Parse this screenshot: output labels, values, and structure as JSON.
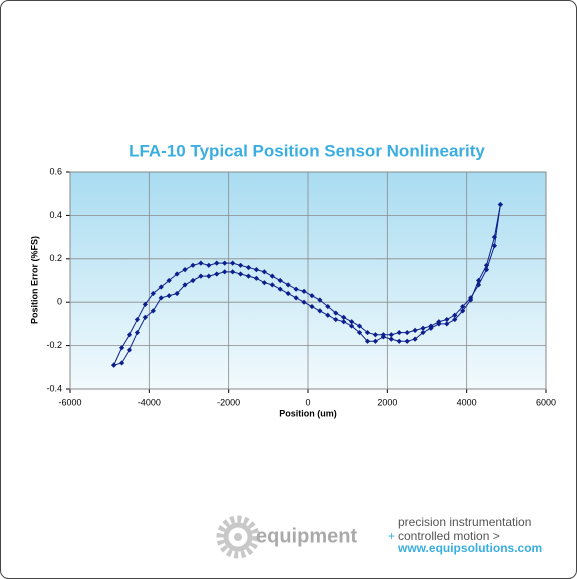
{
  "chart_data": {
    "type": "scatter",
    "title": "LFA-10 Typical Position Sensor Nonlinearity",
    "xlabel": "Position (um)",
    "ylabel": "Position Error (%FS)",
    "x": [
      -4900,
      -4700,
      -4500,
      -4300,
      -4100,
      -3900,
      -3700,
      -3500,
      -3300,
      -3100,
      -2900,
      -2700,
      -2500,
      -2300,
      -2100,
      -1900,
      -1700,
      -1500,
      -1300,
      -1100,
      -900,
      -700,
      -500,
      -300,
      -100,
      100,
      300,
      500,
      700,
      900,
      1100,
      1300,
      1500,
      1700,
      1900,
      2100,
      2300,
      2500,
      2700,
      2900,
      3100,
      3300,
      3500,
      3700,
      3900,
      4100,
      4300,
      4500,
      4700,
      4850
    ],
    "series": [
      {
        "color": "#0d1f8c",
        "values": [
          -0.29,
          -0.21,
          -0.15,
          -0.08,
          -0.01,
          0.04,
          0.07,
          0.1,
          0.13,
          0.15,
          0.17,
          0.18,
          0.17,
          0.18,
          0.18,
          0.18,
          0.17,
          0.16,
          0.15,
          0.14,
          0.12,
          0.1,
          0.08,
          0.06,
          0.05,
          0.03,
          0.01,
          -0.02,
          -0.05,
          -0.07,
          -0.09,
          -0.11,
          -0.14,
          -0.15,
          -0.15,
          -0.15,
          -0.14,
          -0.14,
          -0.13,
          -0.12,
          -0.11,
          -0.09,
          -0.08,
          -0.06,
          -0.02,
          0.02,
          0.08,
          0.15,
          0.26,
          0.45
        ]
      },
      {
        "color": "#0d1f8c",
        "values": [
          -0.29,
          -0.28,
          -0.22,
          -0.14,
          -0.07,
          -0.04,
          0.02,
          0.03,
          0.04,
          0.08,
          0.1,
          0.12,
          0.12,
          0.13,
          0.14,
          0.14,
          0.13,
          0.12,
          0.11,
          0.09,
          0.08,
          0.06,
          0.04,
          0.02,
          0.0,
          -0.02,
          -0.04,
          -0.06,
          -0.08,
          -0.09,
          -0.11,
          -0.14,
          -0.18,
          -0.18,
          -0.16,
          -0.17,
          -0.18,
          -0.18,
          -0.17,
          -0.14,
          -0.12,
          -0.1,
          -0.1,
          -0.08,
          -0.04,
          0.01,
          0.1,
          0.17,
          0.3,
          0.45
        ]
      }
    ],
    "xlim": [
      -6000,
      6000
    ],
    "xticks": [
      -6000,
      -4000,
      -2000,
      0,
      2000,
      4000,
      6000
    ],
    "ylim": [
      -0.4,
      0.6
    ],
    "yticks": [
      -0.4,
      -0.2,
      0,
      0.2,
      0.4,
      0.6
    ],
    "grid": true
  },
  "branding": {
    "logo": "equipment",
    "plus": "+",
    "lines": [
      "precision instrumentation",
      "controlled motion >",
      "www.equipsolutions.com"
    ]
  }
}
